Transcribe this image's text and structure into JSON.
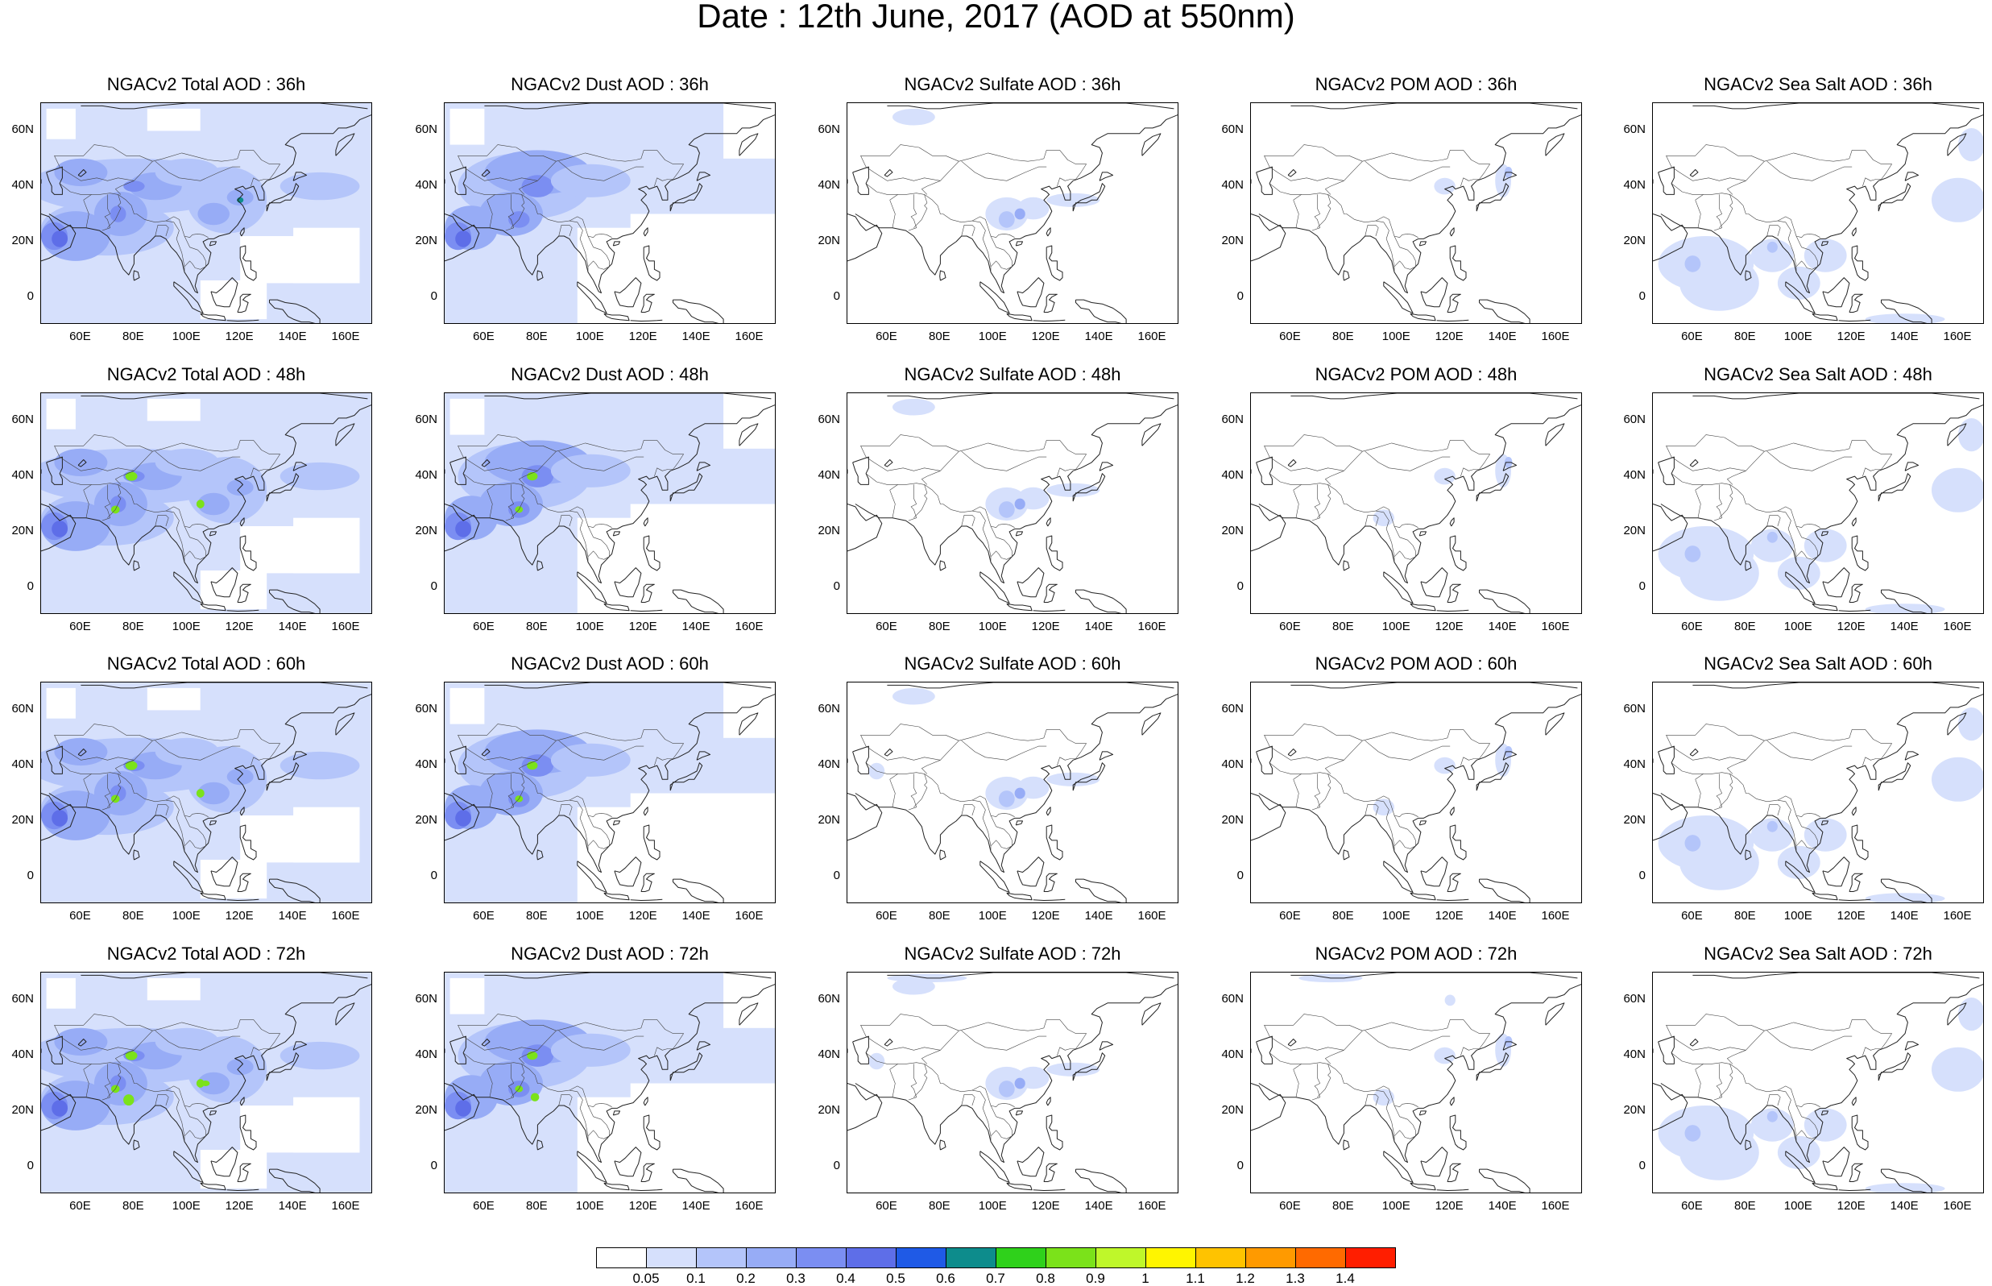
{
  "title": "Date : 12th June, 2017 (AOD at 550nm)",
  "lat_labels": [
    "60N",
    "40N",
    "20N",
    "0"
  ],
  "lon_labels": [
    "60E",
    "80E",
    "100E",
    "120E",
    "140E",
    "160E"
  ],
  "rows": [
    [
      "NGACv2 Total AOD : 36h",
      "NGACv2 Dust AOD : 36h",
      "NGACv2 Sulfate AOD : 36h",
      "NGACv2 POM AOD : 36h",
      "NGACv2 Sea Salt AOD : 36h"
    ],
    [
      "NGACv2 Total AOD : 48h",
      "NGACv2 Dust AOD : 48h",
      "NGACv2 Sulfate AOD : 48h",
      "NGACv2 POM AOD : 48h",
      "NGACv2 Sea Salt AOD : 48h"
    ],
    [
      "NGACv2 Total AOD : 60h",
      "NGACv2 Dust AOD : 60h",
      "NGACv2 Sulfate AOD : 60h",
      "NGACv2 POM AOD : 60h",
      "NGACv2 Sea Salt AOD : 60h"
    ],
    [
      "NGACv2 Total AOD : 72h",
      "NGACv2 Dust AOD : 72h",
      "NGACv2 Sulfate AOD : 72h",
      "NGACv2 POM AOD : 72h",
      "NGACv2 Sea Salt  AOD : 72h"
    ]
  ],
  "colorbar": {
    "labels": [
      "0.05",
      "0.1",
      "0.2",
      "0.3",
      "0.4",
      "0.5",
      "0.6",
      "0.7",
      "0.8",
      "0.9",
      "1",
      "1.1",
      "1.2",
      "1.3",
      "1.4"
    ],
    "colors": [
      "#ffffff",
      "#d6e0fc",
      "#b4c5fa",
      "#97acf6",
      "#7b8ef2",
      "#5e6ee8",
      "#1f5ae6",
      "#0d8c8c",
      "#2fd11b",
      "#7be21a",
      "#bff72a",
      "#fff500",
      "#ffc300",
      "#ff9a00",
      "#ff6a00",
      "#ff1e00"
    ]
  }
}
